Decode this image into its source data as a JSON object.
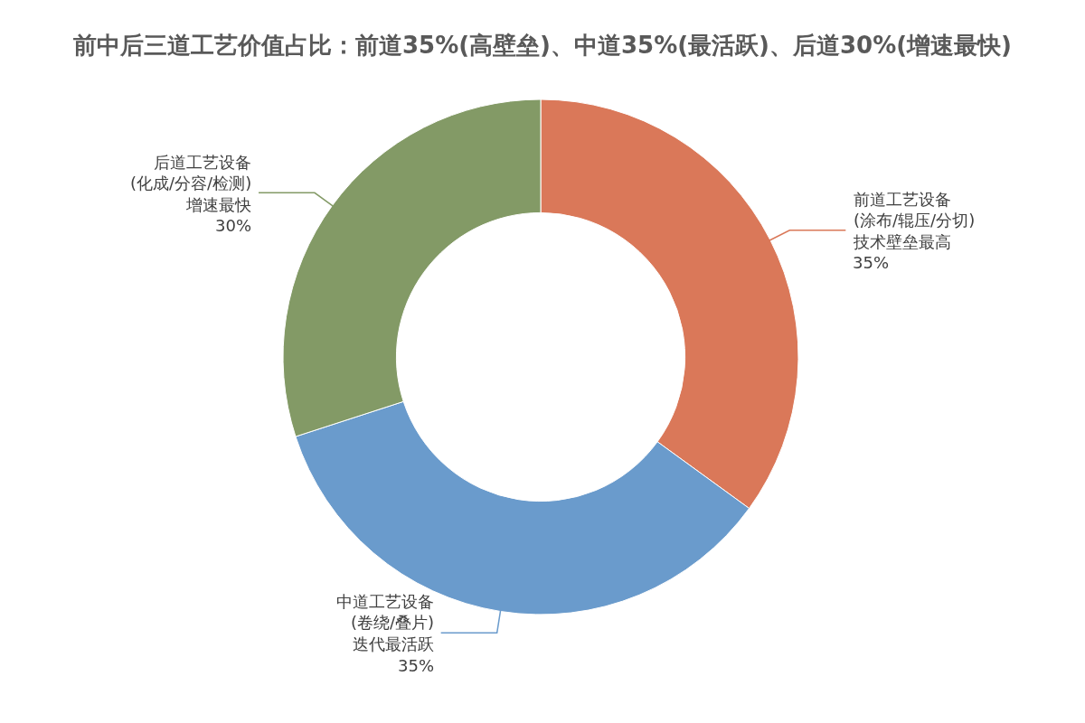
{
  "chart_data": {
    "type": "donut",
    "title": "前中后三道工艺价值占比：前道35%(高壁垒)、中道35%(最活跃)、后道30%(增速最快)",
    "categories": [
      "前道工艺设备\n(涂布/辊压/分切)\n技术壁垒最高",
      "中道工艺设备\n(卷绕/叠片)\n迭代最活跃",
      "后道工艺设备\n(化成/分容/检测)\n增速最快"
    ],
    "values": [
      35,
      35,
      30
    ],
    "value_labels": [
      "35%",
      "35%",
      "30%"
    ],
    "colors": [
      "#da7859",
      "#6a9bcc",
      "#839a66"
    ],
    "legend": false
  }
}
